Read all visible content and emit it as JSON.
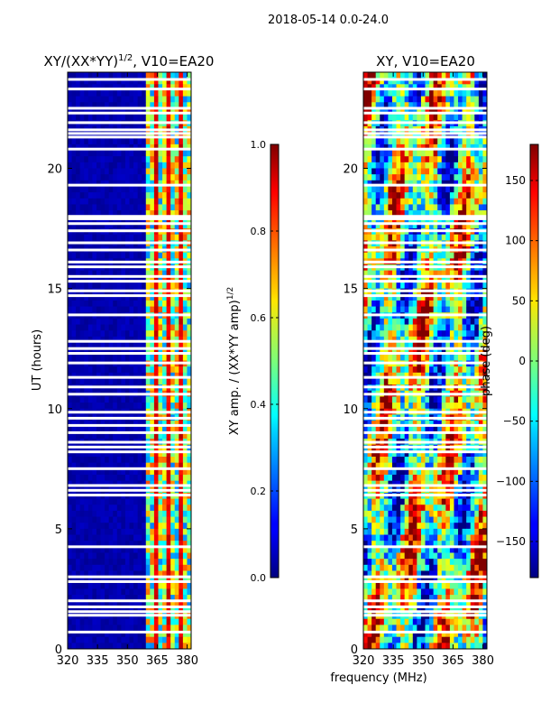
{
  "suptitle": "2018-05-14 0.0-24.0",
  "shared": {
    "xlabel": "frequency (MHz)",
    "x_range": [
      320,
      382
    ],
    "x_ticks": [
      "320",
      "335",
      "350",
      "365",
      "380"
    ],
    "x_tick_values": [
      320,
      335,
      350,
      365,
      380
    ],
    "y_range": [
      0,
      24
    ],
    "y_ticks": [
      "0",
      "5",
      "10",
      "15",
      "20"
    ],
    "y_tick_values": [
      0,
      5,
      10,
      15,
      20
    ],
    "flagged_hours": [
      0.7,
      1.4,
      1.55,
      1.75,
      2.0,
      2.8,
      3.0,
      4.25,
      6.4,
      6.6,
      6.8,
      7.5,
      8.2,
      8.4,
      8.6,
      9.0,
      9.3,
      9.6,
      9.85,
      10.6,
      10.9,
      11.3,
      11.9,
      12.3,
      12.5,
      12.8,
      13.9,
      14.7,
      14.9,
      15.3,
      15.5,
      15.9,
      16.1,
      16.6,
      16.9,
      17.4,
      17.7,
      17.9,
      18.0,
      19.3,
      20.8,
      21.3,
      21.45,
      21.6,
      21.9,
      22.3,
      22.5,
      23.3,
      23.7
    ],
    "active_band_mhz": [
      359,
      382
    ]
  },
  "chart_data": [
    {
      "type": "heatmap",
      "title": "XY/(XX*YY)",
      "title_exponent": "1/2",
      "title_suffix": ", V10=EA20",
      "ylabel": "UT (hours)",
      "colorbar": {
        "label": "XY amp. / (XX*YY amp)",
        "label_exponent": "1/2",
        "range": [
          0.0,
          1.0
        ],
        "ticks": [
          "0.0",
          "0.2",
          "0.4",
          "0.6",
          "0.8",
          "1.0"
        ],
        "tick_values": [
          0.0,
          0.2,
          0.4,
          0.6,
          0.8,
          1.0
        ]
      },
      "typical_background_value": 0.02,
      "active_band_value_range": [
        0.2,
        0.95
      ]
    },
    {
      "type": "heatmap",
      "title": "XY, V10=EA20",
      "colorbar": {
        "label": "phase (deg)",
        "range": [
          -180,
          180
        ],
        "ticks": [
          "−150",
          "−100",
          "−50",
          "0",
          "50",
          "100",
          "150"
        ],
        "tick_values": [
          -150,
          -100,
          -50,
          0,
          50,
          100,
          150
        ]
      },
      "value_range": [
        -180,
        180
      ]
    }
  ]
}
